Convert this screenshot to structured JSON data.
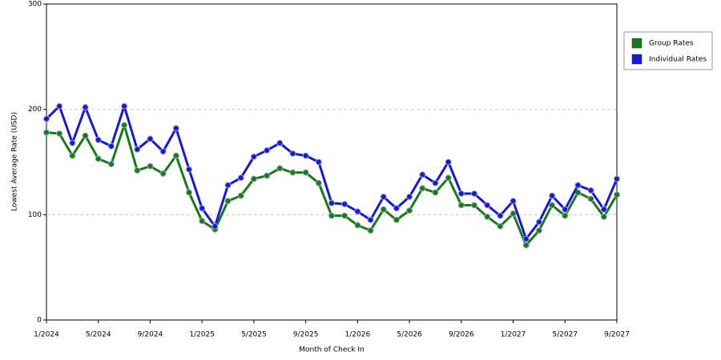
{
  "chart_data": {
    "type": "line",
    "x_label": "Month of Check In",
    "y_label": "Lowest Average Rate (USD)",
    "categories": [
      "1/2024",
      null,
      null,
      null,
      "5/2024",
      null,
      null,
      null,
      "9/2024",
      null,
      null,
      null,
      "1/2025",
      null,
      null,
      null,
      "5/2025",
      null,
      null,
      null,
      "9/2025",
      null,
      null,
      null,
      "1/2026",
      null,
      null,
      null,
      "5/2026",
      null,
      null,
      null,
      "9/2026",
      null,
      null,
      null,
      "1/2027",
      null,
      null,
      null,
      "5/2027",
      null,
      null,
      null,
      "9/2027"
    ],
    "series": [
      {
        "name": "Group Rates",
        "color": "#187a18",
        "values": [
          178,
          177,
          156,
          175,
          153,
          148,
          185,
          142,
          146,
          139,
          156,
          121,
          94,
          86,
          113,
          118,
          134,
          137,
          144,
          140,
          140,
          130,
          99,
          99,
          90,
          85,
          105,
          95,
          104,
          125,
          121,
          135,
          109,
          109,
          98,
          89,
          101,
          71,
          85,
          109,
          99,
          121,
          115,
          98,
          119
        ]
      },
      {
        "name": "Individual Rates",
        "color": "#1818d8",
        "values": [
          191,
          203,
          168,
          202,
          171,
          165,
          203,
          162,
          172,
          160,
          182,
          143,
          106,
          89,
          128,
          135,
          155,
          161,
          168,
          158,
          156,
          150,
          111,
          110,
          103,
          95,
          117,
          106,
          117,
          138,
          130,
          150,
          120,
          120,
          109,
          99,
          113,
          77,
          93,
          118,
          105,
          128,
          123,
          105,
          134
        ]
      }
    ],
    "ylim": [
      0,
      300
    ],
    "yticks": [
      0,
      100,
      200,
      300
    ],
    "grid": true,
    "legend": "right"
  }
}
